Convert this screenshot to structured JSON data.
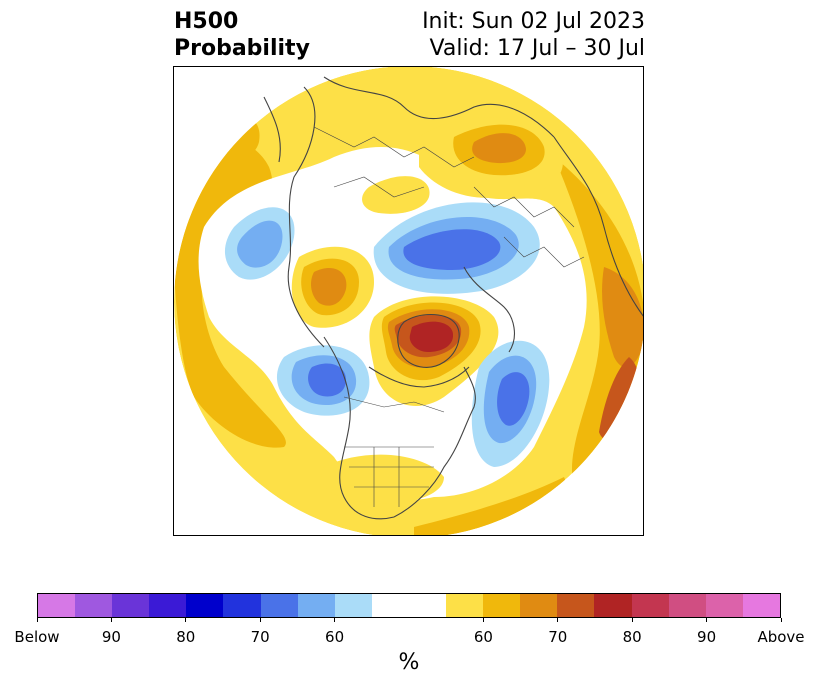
{
  "title": {
    "line1": "H500",
    "line2": "Probability",
    "init": "Init: Sun 02 Jul 2023",
    "valid": "Valid: 17 Jul – 30 Jul"
  },
  "map": {
    "projection": "north-polar-stereographic",
    "variable": "500 hPa geopotential height tercile probability",
    "features": [
      {
        "name": "above-normal-greenland",
        "category": "above",
        "peak_percent": 80
      },
      {
        "name": "above-normal-western-russia",
        "category": "above",
        "peak_percent": 70
      },
      {
        "name": "above-normal-eastern-asia",
        "category": "above",
        "peak_percent": 70
      },
      {
        "name": "above-normal-northwest-europe",
        "category": "above",
        "peak_percent": 65
      },
      {
        "name": "below-normal-siberia",
        "category": "below",
        "peak_percent": 75
      },
      {
        "name": "below-normal-north-atlantic",
        "category": "below",
        "peak_percent": 75
      },
      {
        "name": "below-normal-gulf-of-alaska",
        "category": "below",
        "peak_percent": 75
      },
      {
        "name": "below-normal-western-pacific",
        "category": "below",
        "peak_percent": 65
      }
    ]
  },
  "colorbar": {
    "unit": "%",
    "below_colors": [
      "#d678e6",
      "#9f58e0",
      "#6a34d8",
      "#3b1ad6",
      "#0000cc",
      "#2233dd",
      "#4a72e8",
      "#74aef2",
      "#aadcf8"
    ],
    "above_colors": [
      "#fde047",
      "#f0b80c",
      "#e08b12",
      "#c6561c",
      "#b02424",
      "#c33650",
      "#d04e82",
      "#dc62aa",
      "#e678e0"
    ],
    "below_ticks": [
      "Below",
      "90",
      "80",
      "70",
      "60"
    ],
    "above_ticks": [
      "60",
      "70",
      "80",
      "90",
      "Above"
    ]
  },
  "colors": {
    "coastline": "#444444",
    "frame": "#000000"
  }
}
